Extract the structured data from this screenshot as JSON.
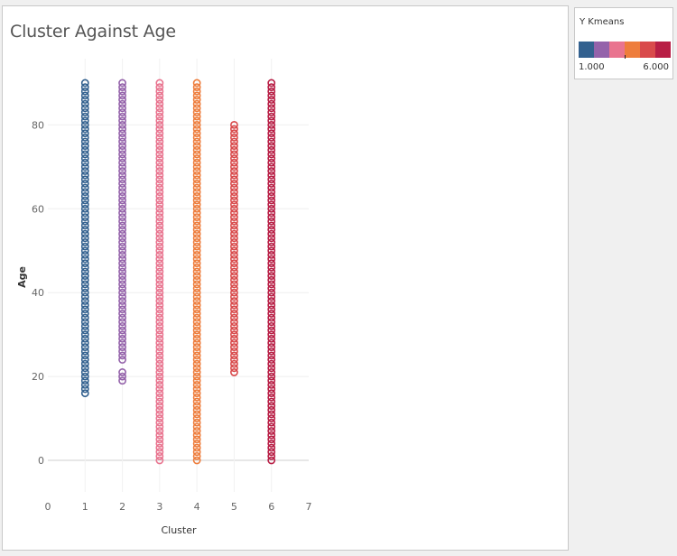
{
  "chart_data": {
    "type": "scatter",
    "title": "Cluster Against Age",
    "xlabel": "Cluster",
    "ylabel": "Age",
    "xlim": [
      0,
      7
    ],
    "ylim": [
      0,
      90
    ],
    "x_ticks": [
      0,
      1,
      2,
      3,
      4,
      5,
      6,
      7
    ],
    "y_ticks": [
      0,
      20,
      40,
      60,
      80
    ],
    "grid": true,
    "marker": "hollow-circle",
    "series": [
      {
        "cluster": 1,
        "color": "#33618f",
        "age_min": 16,
        "age_max": 90,
        "gaps": []
      },
      {
        "cluster": 2,
        "color": "#9462aa",
        "age_min": 19,
        "age_max": 90,
        "gaps": [
          [
            21.5,
            23.5
          ]
        ]
      },
      {
        "cluster": 3,
        "color": "#e9748f",
        "age_min": 0,
        "age_max": 90,
        "gaps": []
      },
      {
        "cluster": 4,
        "color": "#ee7d3c",
        "age_min": 0,
        "age_max": 90,
        "gaps": []
      },
      {
        "cluster": 5,
        "color": "#d94a4b",
        "age_min": 21,
        "age_max": 80,
        "gaps": []
      },
      {
        "cluster": 6,
        "color": "#b81e45",
        "age_min": 0,
        "age_max": 90,
        "gaps": []
      }
    ]
  },
  "legend": {
    "title": "Y Kmeans",
    "min_label": "1.000",
    "max_label": "6.000",
    "colors": [
      "#33618f",
      "#9462aa",
      "#e9748f",
      "#ee7d3c",
      "#d94a4b",
      "#b81e45"
    ],
    "marker_value": 3.5
  }
}
